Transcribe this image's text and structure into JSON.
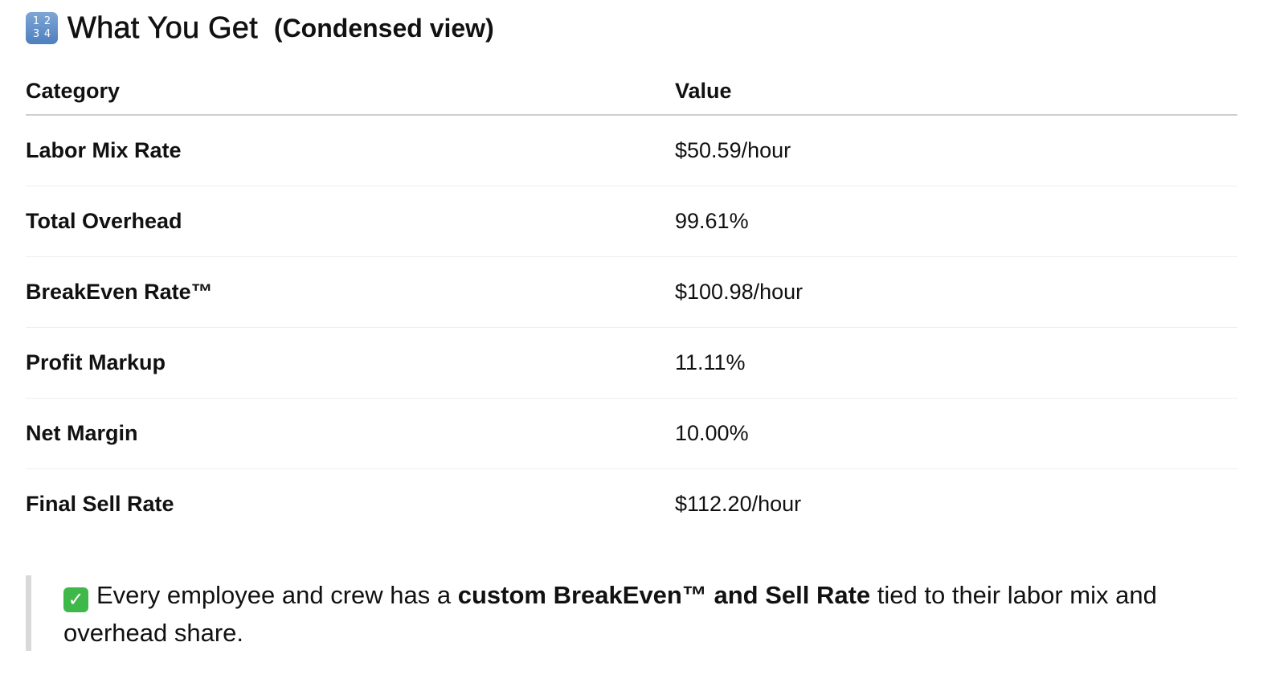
{
  "heading": {
    "icon": "input-numbers-icon",
    "icon_digits": [
      "1",
      "2",
      "3",
      "4"
    ],
    "title": "What You Get",
    "subtitle": "(Condensed view)"
  },
  "table": {
    "headers": [
      "Category",
      "Value"
    ],
    "rows": [
      {
        "category": "Labor Mix Rate",
        "value": "$50.59/hour"
      },
      {
        "category": "Total Overhead",
        "value": "99.61%"
      },
      {
        "category": "BreakEven Rate™",
        "value": "$100.98/hour"
      },
      {
        "category": "Profit Markup",
        "value": "11.11%"
      },
      {
        "category": "Net Margin",
        "value": "10.00%"
      },
      {
        "category": "Final Sell Rate",
        "value": "$112.20/hour"
      }
    ]
  },
  "callout": {
    "icon": "check-mark-button-icon",
    "icon_glyph": "✓",
    "text_before": "Every employee and crew has a ",
    "text_bold": "custom BreakEven™ and Sell Rate",
    "text_after": " tied to their labor mix and overhead share."
  }
}
